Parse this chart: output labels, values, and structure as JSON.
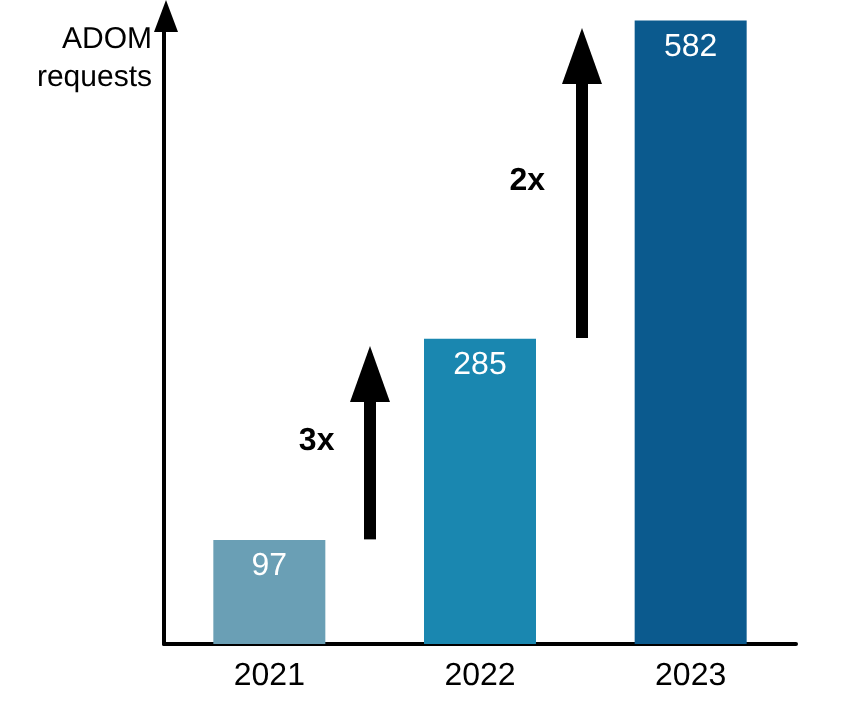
{
  "chart_data": {
    "type": "bar",
    "ylabel": "ADOM requests",
    "categories": [
      "2021",
      "2022",
      "2023"
    ],
    "values": [
      97,
      285,
      582
    ],
    "colors": [
      "#6a9fb5",
      "#1a87b0",
      "#0b5a8e"
    ],
    "ylim": [
      0,
      590
    ],
    "tick_labels": "x",
    "grid": false,
    "data_labels": true,
    "annotations": [
      "3x",
      "2x"
    ]
  }
}
